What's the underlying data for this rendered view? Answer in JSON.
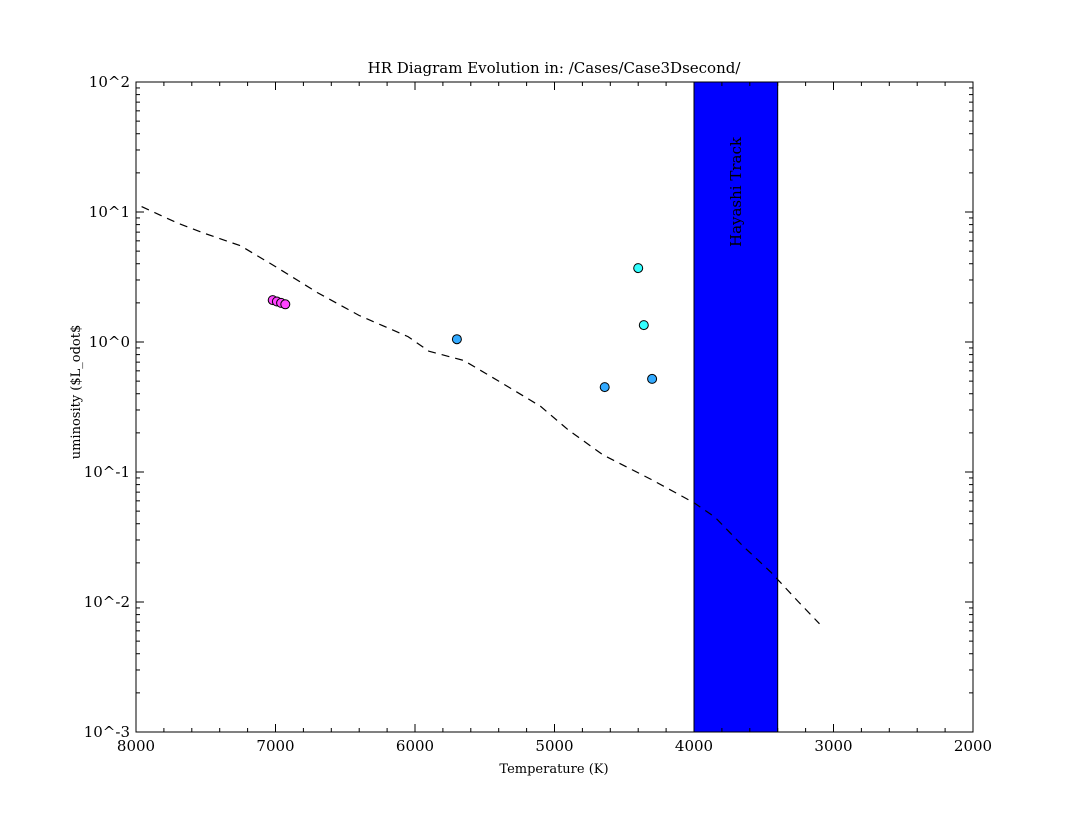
{
  "chart_data": {
    "type": "scatter",
    "title": "HR Diagram Evolution in: /Cases/Case3Dsecond/",
    "xlabel": "Temperature (K)",
    "ylabel": "uminosity ($L_odot$",
    "xlim": [
      8000,
      2000
    ],
    "ylim": [
      0.001,
      100
    ],
    "yscale": "log",
    "grid": false,
    "x_ticks": [
      8000,
      7000,
      6000,
      5000,
      4000,
      3000,
      2000
    ],
    "x_tick_labels": [
      "8000",
      "7000",
      "6000",
      "5000",
      "4000",
      "3000",
      "2000"
    ],
    "y_ticks": [
      100,
      10,
      1,
      0.1,
      0.01,
      0.001
    ],
    "y_tick_labels": [
      "10^2",
      "10^1",
      "10^0",
      "10^-1",
      "10^-2",
      "10^-3"
    ],
    "band": {
      "x_range": [
        4000,
        3400
      ],
      "color": "#0000ff",
      "label": "Hayashi Track"
    },
    "reference_curve": {
      "style": "dashed",
      "color": "#000000",
      "x": [
        7960,
        7700,
        7500,
        7250,
        7000,
        6700,
        6400,
        6050,
        5900,
        5650,
        5400,
        5100,
        4900,
        4650,
        4300,
        4000,
        3850,
        3650,
        3450,
        3250,
        3100
      ],
      "y": [
        11.0,
        8.2,
        6.8,
        5.5,
        3.8,
        2.4,
        1.6,
        1.1,
        0.85,
        0.72,
        0.5,
        0.32,
        0.21,
        0.135,
        0.087,
        0.058,
        0.045,
        0.027,
        0.017,
        0.01,
        0.0068
      ]
    },
    "series": [
      {
        "color": "#ff44ff",
        "x": [
          7020,
          6990,
          6960,
          6930
        ],
        "y": [
          2.1,
          2.05,
          2.0,
          1.95
        ]
      },
      {
        "color": "#33aaff",
        "x": [
          5700,
          4640,
          4300
        ],
        "y": [
          1.05,
          0.45,
          0.52
        ]
      },
      {
        "color": "#33ffff",
        "x": [
          4400,
          4360
        ],
        "y": [
          3.7,
          1.35
        ]
      }
    ]
  }
}
